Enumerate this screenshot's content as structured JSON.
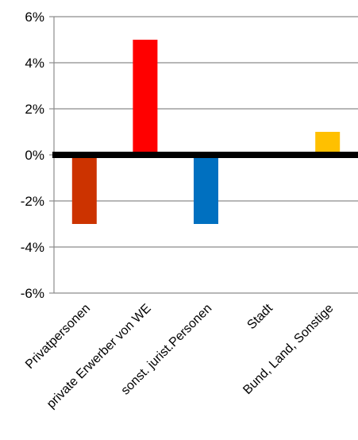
{
  "chart_data": {
    "type": "bar",
    "categories": [
      "Privatpersonen",
      "private Erwerber von WE",
      "sonst. jurist.Personen",
      "Stadt",
      "Bund, Land, Sonstige"
    ],
    "values": [
      -3,
      5,
      -3,
      0,
      1
    ],
    "value_unit": "%",
    "colors": [
      "#cc3300",
      "#ff0000",
      "#0070c0",
      "#7f7f7f",
      "#ffc000"
    ],
    "ylim": [
      -6,
      6
    ],
    "y_ticks": [
      "6%",
      "4%",
      "2%",
      "0%",
      "-2%",
      "-4%",
      "-6%"
    ],
    "grid": true,
    "legend": "none",
    "title": "",
    "xlabel": "",
    "ylabel": ""
  }
}
